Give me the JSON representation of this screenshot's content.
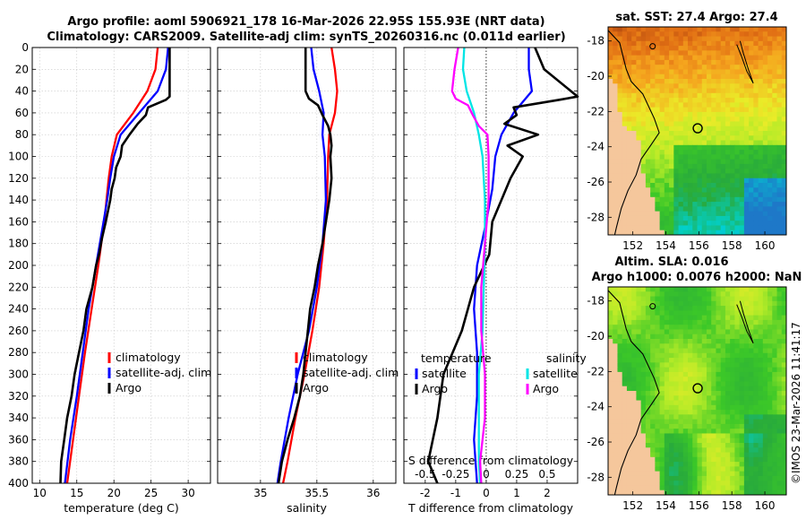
{
  "title_line1": "Argo profile: aoml 5906921_178 16-Mar-2026 22.95S 155.93E (NRT data)",
  "title_line2": "Climatology: CARS2009. Satellite-adj clim: synTS_20260316.nc (0.011d earlier)",
  "watermark": "©IMOS 23-Mar-2026 11:41:17",
  "colors": {
    "climatology": "#ff0000",
    "satellite": "#0000ff",
    "argo": "#000000",
    "sat_salinity": "#00e5e5",
    "argo_salinity": "#ff00ff"
  },
  "chart_data": [
    {
      "type": "line",
      "id": "temperature",
      "xlabel": "temperature (deg C)",
      "xlim": [
        9,
        33
      ],
      "xticks": [
        10,
        15,
        20,
        25,
        30
      ],
      "ylim": [
        0,
        400
      ],
      "yticks": [
        0,
        20,
        40,
        60,
        80,
        100,
        120,
        140,
        160,
        180,
        200,
        220,
        240,
        260,
        280,
        300,
        320,
        340,
        360,
        380,
        400
      ],
      "legend": [
        "climatology",
        "satellite-adj. clim",
        "Argo"
      ],
      "series": [
        {
          "name": "climatology",
          "color": "#ff0000",
          "depth": [
            0,
            20,
            40,
            60,
            80,
            100,
            120,
            140,
            160,
            200,
            240,
            280,
            320,
            360,
            400
          ],
          "values": [
            25.9,
            25.6,
            24.5,
            22.6,
            20.4,
            19.7,
            19.3,
            19.0,
            18.7,
            17.9,
            17.0,
            16.1,
            15.3,
            14.5,
            13.7
          ]
        },
        {
          "name": "satellite-adj. clim",
          "color": "#0000ff",
          "depth": [
            0,
            20,
            40,
            60,
            80,
            100,
            120,
            140,
            160,
            200,
            240,
            280,
            320,
            360,
            400
          ],
          "values": [
            27.3,
            27.0,
            25.9,
            23.4,
            20.9,
            20.0,
            19.5,
            19.1,
            18.6,
            17.6,
            16.6,
            15.8,
            15.0,
            14.1,
            13.4
          ]
        },
        {
          "name": "Argo",
          "color": "#000000",
          "depth": [
            0,
            20,
            45,
            48,
            55,
            62,
            70,
            80,
            90,
            100,
            110,
            120,
            130,
            140,
            150,
            160,
            175,
            190,
            200,
            220,
            240,
            260,
            280,
            300,
            320,
            340,
            360,
            380,
            400
          ],
          "values": [
            27.5,
            27.5,
            27.5,
            27.0,
            24.6,
            24.3,
            23.2,
            22.1,
            21.1,
            20.9,
            20.3,
            20.1,
            19.7,
            19.5,
            19.2,
            18.9,
            18.4,
            18.0,
            17.6,
            17.1,
            16.3,
            15.9,
            15.3,
            14.7,
            14.3,
            13.7,
            13.3,
            12.9,
            12.8
          ]
        }
      ]
    },
    {
      "type": "line",
      "id": "salinity",
      "xlabel": "salinity",
      "xlim": [
        34.62,
        36.2
      ],
      "xticks": [
        35,
        35.5,
        36
      ],
      "xticklabels": [
        "35",
        "35.5",
        "36"
      ],
      "ylim": [
        0,
        400
      ],
      "legend": [
        "climatology",
        "satellite-adj. clim",
        "Argo"
      ],
      "series": [
        {
          "name": "climatology",
          "color": "#ff0000",
          "depth": [
            0,
            20,
            40,
            60,
            80,
            100,
            140,
            180,
            220,
            260,
            300,
            340,
            380,
            400
          ],
          "values": [
            35.63,
            35.66,
            35.68,
            35.66,
            35.61,
            35.6,
            35.59,
            35.56,
            35.52,
            35.46,
            35.39,
            35.31,
            35.24,
            35.2
          ]
        },
        {
          "name": "satellite-adj. clim",
          "color": "#0000ff",
          "depth": [
            0,
            20,
            40,
            60,
            80,
            100,
            140,
            180,
            220,
            260,
            300,
            340,
            380,
            400
          ],
          "values": [
            35.45,
            35.47,
            35.52,
            35.56,
            35.55,
            35.57,
            35.58,
            35.55,
            35.5,
            35.43,
            35.33,
            35.25,
            35.18,
            35.15
          ]
        },
        {
          "name": "Argo",
          "color": "#000000",
          "depth": [
            0,
            20,
            40,
            47,
            53,
            62,
            72,
            80,
            90,
            100,
            120,
            140,
            160,
            180,
            200,
            220,
            240,
            260,
            280,
            300,
            320,
            340,
            360,
            380,
            400
          ],
          "values": [
            35.4,
            35.4,
            35.4,
            35.43,
            35.51,
            35.55,
            35.6,
            35.62,
            35.63,
            35.62,
            35.63,
            35.61,
            35.58,
            35.55,
            35.51,
            35.48,
            35.44,
            35.42,
            35.4,
            35.38,
            35.35,
            35.3,
            35.24,
            35.19,
            35.16
          ]
        }
      ]
    },
    {
      "type": "line",
      "id": "differences",
      "xlabel": "T difference from climatology",
      "xlim": [
        -2.7,
        3.0
      ],
      "xticks": [
        -2,
        -1,
        0,
        1,
        2
      ],
      "top_axis_label": "S difference from climatology",
      "top_xlim": [
        -0.675,
        0.75
      ],
      "top_xticks": [
        -0.5,
        -0.25,
        0,
        0.25,
        0.5
      ],
      "top_xticklabels": [
        "-0.5",
        "-0.25",
        "0",
        "0.25",
        "0.5"
      ],
      "ylim": [
        0,
        400
      ],
      "legend_left_title": "temperature",
      "legend_right_title": "salinity",
      "legend_left": [
        "satellite",
        "Argo"
      ],
      "legend_right": [
        "satellite",
        "Argo"
      ],
      "series": [
        {
          "name": "temperature satellite",
          "color": "#0000ff",
          "axis": "T",
          "depth": [
            0,
            20,
            40,
            60,
            80,
            100,
            130,
            160,
            200,
            240,
            280,
            320,
            360,
            400
          ],
          "values": [
            1.4,
            1.4,
            1.5,
            0.9,
            0.5,
            0.3,
            0.2,
            0.0,
            -0.3,
            -0.4,
            -0.3,
            -0.3,
            -0.4,
            -0.3
          ]
        },
        {
          "name": "temperature Argo",
          "color": "#000000",
          "axis": "T",
          "depth": [
            0,
            20,
            45,
            48,
            55,
            62,
            70,
            80,
            90,
            100,
            120,
            140,
            160,
            190,
            220,
            260,
            300,
            340,
            380,
            400
          ],
          "values": [
            1.6,
            1.9,
            3.0,
            2.4,
            0.9,
            1.0,
            0.6,
            1.7,
            0.7,
            1.2,
            0.8,
            0.5,
            0.2,
            0.1,
            -0.4,
            -0.8,
            -1.4,
            -1.6,
            -1.9,
            -1.6
          ]
        },
        {
          "name": "salinity satellite",
          "color": "#00e5e5",
          "axis": "S",
          "depth": [
            0,
            20,
            40,
            60,
            80,
            100,
            140,
            180,
            220,
            260,
            300,
            340,
            380,
            400
          ],
          "values": [
            -0.18,
            -0.19,
            -0.16,
            -0.1,
            -0.06,
            -0.03,
            -0.01,
            -0.01,
            -0.02,
            -0.03,
            -0.06,
            -0.06,
            -0.06,
            -0.05
          ]
        },
        {
          "name": "salinity Argo",
          "color": "#ff00ff",
          "axis": "S",
          "depth": [
            0,
            20,
            40,
            47,
            53,
            62,
            72,
            80,
            100,
            140,
            180,
            220,
            260,
            300,
            340,
            380,
            400
          ],
          "values": [
            -0.23,
            -0.26,
            -0.28,
            -0.25,
            -0.15,
            -0.11,
            -0.06,
            0.01,
            0.02,
            0.02,
            -0.01,
            -0.04,
            -0.04,
            -0.01,
            -0.01,
            -0.05,
            -0.04
          ]
        }
      ]
    },
    {
      "type": "heatmap",
      "id": "sst_map",
      "title": "sat. SST: 27.4 Argo: 27.4",
      "xticks": [
        152,
        154,
        156,
        158,
        160
      ],
      "yticks": [
        -18,
        -20,
        -22,
        -24,
        -26,
        -28
      ],
      "xlim": [
        150.5,
        161.3
      ],
      "ylim": [
        -29.0,
        -17.2
      ],
      "argo_position": {
        "lon": 155.93,
        "lat": -22.95
      }
    },
    {
      "type": "heatmap",
      "id": "sla_map",
      "title": "Altim. SLA: 0.016",
      "subtitle": "Argo h1000: 0.0076 h2000: NaN",
      "xticks": [
        152,
        154,
        156,
        158,
        160
      ],
      "yticks": [
        -18,
        -20,
        -22,
        -24,
        -26,
        -28
      ],
      "xlim": [
        150.5,
        161.3
      ],
      "ylim": [
        -29.0,
        -17.2
      ],
      "argo_position": {
        "lon": 155.93,
        "lat": -22.95
      }
    }
  ]
}
